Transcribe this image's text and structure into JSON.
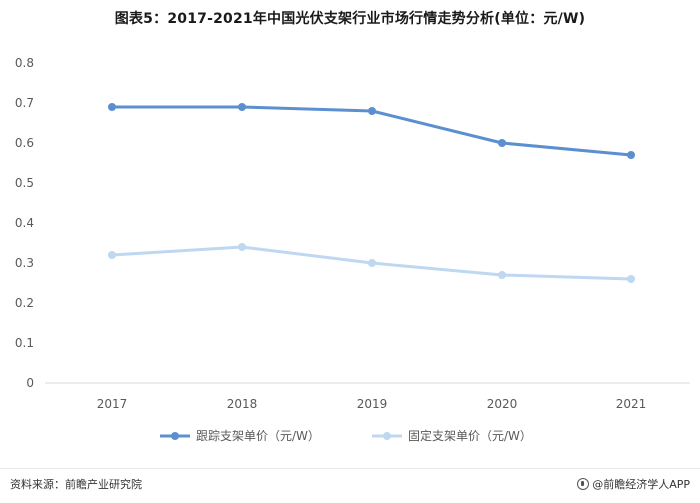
{
  "title": "图表5：2017-2021年中国光伏支架行业市场行情走势分析(单位：元/W)",
  "source_text": "资料来源：前瞻产业研究院",
  "brand_text": "@前瞻经济学人APP",
  "colors": {
    "tracking": "#5b8fcf",
    "fixed": "#bfd7f1",
    "axis": "#d9d9d9",
    "text": "#595959"
  },
  "chart_data": {
    "type": "line",
    "title": "图表5：2017-2021年中国光伏支架行业市场行情走势分析(单位：元/W)",
    "categories": [
      "2017",
      "2018",
      "2019",
      "2020",
      "2021"
    ],
    "series": [
      {
        "name": "跟踪支架单价（元/W）",
        "values": [
          0.69,
          0.69,
          0.68,
          0.6,
          0.57
        ]
      },
      {
        "name": "固定支架单价（元/W）",
        "values": [
          0.32,
          0.34,
          0.3,
          0.27,
          0.26
        ]
      }
    ],
    "ylim": [
      0,
      0.8
    ],
    "yticks": [
      "0",
      "0.1",
      "0.2",
      "0.3",
      "0.4",
      "0.5",
      "0.6",
      "0.7",
      "0.8"
    ],
    "grid": false,
    "legend": "bottom"
  }
}
